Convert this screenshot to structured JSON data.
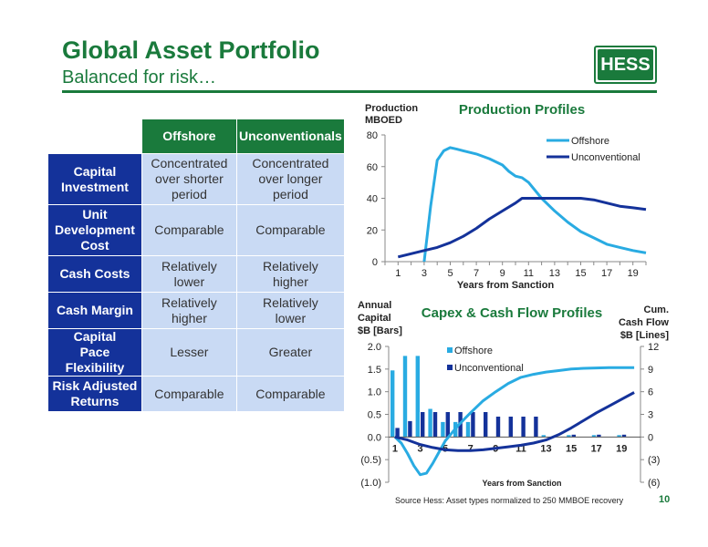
{
  "header": {
    "title": "Global Asset Portfolio",
    "subtitle": "Balanced for risk…",
    "logo_text": "HESS",
    "brand_color": "#1a7a3c"
  },
  "table": {
    "columns": [
      "Offshore",
      "Unconventionals"
    ],
    "rows": [
      {
        "label": "Capital Investment",
        "offshore": "Concentrated over shorter period",
        "unconventional": "Concentrated over longer period"
      },
      {
        "label": "Unit Development Cost",
        "offshore": "Comparable",
        "unconventional": "Comparable"
      },
      {
        "label": "Cash Costs",
        "offshore": "Relatively lower",
        "unconventional": "Relatively higher"
      },
      {
        "label": "Cash Margin",
        "offshore": "Relatively higher",
        "unconventional": "Relatively lower"
      },
      {
        "label": "Capital Pace Flexibility",
        "offshore": "Lesser",
        "unconventional": "Greater"
      },
      {
        "label": "Risk Adjusted Returns",
        "offshore": "Comparable",
        "unconventional": "Comparable"
      }
    ]
  },
  "chart_data": [
    {
      "type": "line",
      "title": "Production Profiles",
      "ylabel": "Production MBOED",
      "xlabel": "Years from Sanction",
      "xlim": [
        0,
        20
      ],
      "ylim": [
        0,
        80
      ],
      "xticks": [
        1,
        3,
        5,
        7,
        9,
        11,
        13,
        15,
        17,
        19
      ],
      "yticks": [
        0,
        20,
        40,
        60,
        80
      ],
      "legend": "top-right",
      "series": [
        {
          "name": "Offshore",
          "color": "#29abe2",
          "x": [
            3,
            3.5,
            4,
            4.5,
            5,
            5.5,
            6,
            7,
            8,
            9,
            9.5,
            10,
            10.5,
            11,
            12,
            13,
            14,
            15,
            16,
            17,
            18,
            19,
            20
          ],
          "y": [
            0,
            35,
            64,
            70,
            72,
            71,
            70,
            68,
            65,
            61,
            57,
            54,
            53,
            50,
            40,
            32,
            25,
            19,
            15,
            11,
            9,
            7,
            5.5
          ]
        },
        {
          "name": "Unconventional",
          "color": "#14329a",
          "x": [
            1,
            2,
            3,
            4,
            5,
            6,
            7,
            8,
            9,
            10,
            10.5,
            11,
            12,
            13,
            14,
            15,
            16,
            17,
            18,
            19,
            20
          ],
          "y": [
            3,
            5,
            7,
            9,
            12,
            16,
            21,
            27,
            32,
            37,
            40,
            40,
            40,
            40,
            40,
            40,
            39,
            37,
            35,
            34,
            33
          ]
        }
      ]
    },
    {
      "type": "bar",
      "title": "Capex & Cash Flow Profiles",
      "ylabel": "Annual Capital $B [Bars]",
      "y2label": "Cum. Cash Flow $B [Lines]",
      "xlabel": "Years from Sanction",
      "ylim": [
        -1.0,
        2.0
      ],
      "y2lim": [
        -6,
        12
      ],
      "xticks": [
        1,
        3,
        5,
        7,
        9,
        11,
        13,
        15,
        17,
        19
      ],
      "yticks": [
        "(1.0)",
        "(0.5)",
        "0.0",
        "0.5",
        "1.0",
        "1.5",
        "2.0"
      ],
      "y2ticks": [
        "(6)",
        "(3)",
        "0",
        "3",
        "6",
        "9",
        "12"
      ],
      "legend": "top-center",
      "categories": [
        1,
        2,
        3,
        4,
        5,
        6,
        7,
        8,
        9,
        10,
        11,
        12,
        13,
        14,
        15,
        16,
        17,
        18,
        19,
        20
      ],
      "series": [
        {
          "name": "Offshore",
          "color": "#29abe2",
          "values": [
            1.47,
            1.79,
            1.79,
            0.62,
            0.33,
            0.33,
            0.33,
            0.0,
            0.0,
            0.0,
            0.0,
            0.0,
            0.04,
            0.0,
            0.04,
            0.0,
            0.04,
            0.0,
            0.04,
            0.0
          ]
        },
        {
          "name": "Unconventional",
          "color": "#14329a",
          "values": [
            0.2,
            0.35,
            0.55,
            0.55,
            0.55,
            0.55,
            0.55,
            0.55,
            0.45,
            0.45,
            0.45,
            0.45,
            0.0,
            0.0,
            0.05,
            0.0,
            0.05,
            0.0,
            0.05,
            0.0
          ]
        }
      ],
      "lines": [
        {
          "name": "Offshore",
          "color": "#29abe2",
          "x": [
            1,
            1.5,
            2,
            2.5,
            3,
            3.5,
            4,
            4.5,
            5,
            6,
            7,
            8,
            9,
            10,
            11,
            12,
            13,
            14,
            15,
            16,
            17,
            18,
            19,
            20
          ],
          "y": [
            0,
            -0.8,
            -2.2,
            -3.8,
            -5.0,
            -4.8,
            -3.5,
            -2.0,
            -0.5,
            1.5,
            3.2,
            4.8,
            6.0,
            7.1,
            7.9,
            8.3,
            8.6,
            8.8,
            9.0,
            9.1,
            9.15,
            9.2,
            9.2,
            9.2
          ]
        },
        {
          "name": "Unconventional",
          "color": "#14329a",
          "x": [
            1,
            2,
            3,
            4,
            5,
            6,
            7,
            8,
            9,
            10,
            11,
            12,
            13,
            14,
            15,
            16,
            17,
            18,
            19,
            20
          ],
          "y": [
            0,
            -0.4,
            -1.0,
            -1.4,
            -1.7,
            -1.8,
            -1.8,
            -1.7,
            -1.5,
            -1.3,
            -1.1,
            -0.8,
            -0.4,
            0.3,
            1.2,
            2.2,
            3.2,
            4.1,
            5.0,
            5.9
          ]
        }
      ]
    }
  ],
  "footer": {
    "source": "Source Hess:  Asset types normalized to 250 MMBOE recovery",
    "page_number": "10"
  }
}
